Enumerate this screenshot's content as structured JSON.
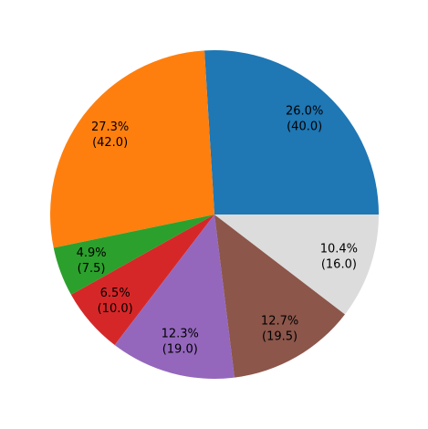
{
  "chart_data": {
    "type": "pie",
    "title": "",
    "start_angle_deg": 0,
    "direction": "counterclockwise",
    "legend": "none",
    "slices": [
      {
        "value": 40.0,
        "percent_label": "26.0%",
        "value_label": "(40.0)",
        "color": "#1f77b4"
      },
      {
        "value": 42.0,
        "percent_label": "27.3%",
        "value_label": "(42.0)",
        "color": "#ff7f0e"
      },
      {
        "value": 7.5,
        "percent_label": "4.9%",
        "value_label": "(7.5)",
        "color": "#2ca02c"
      },
      {
        "value": 10.0,
        "percent_label": "6.5%",
        "value_label": "(10.0)",
        "color": "#d62728"
      },
      {
        "value": 19.0,
        "percent_label": "12.3%",
        "value_label": "(19.0)",
        "color": "#9467bd"
      },
      {
        "value": 19.5,
        "percent_label": "12.7%",
        "value_label": "(19.5)",
        "color": "#8c564b"
      },
      {
        "value": 16.0,
        "percent_label": "10.4%",
        "value_label": "(16.0)",
        "color": "#dcdcdc"
      }
    ]
  }
}
